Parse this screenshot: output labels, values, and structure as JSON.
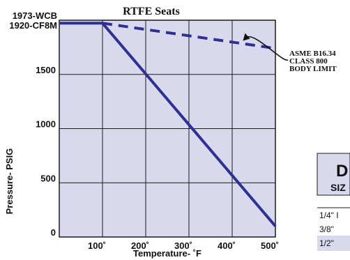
{
  "chart_data": {
    "type": "line",
    "title": "RTFE Seats",
    "xlabel": "Temperature- ˚F",
    "ylabel": "Pressure- PSIG",
    "xlim": [
      0,
      500
    ],
    "ylim": [
      0,
      2000
    ],
    "x_ticks": [
      {
        "value": 100,
        "label": "100˚"
      },
      {
        "value": 200,
        "label": "200˚"
      },
      {
        "value": 300,
        "label": "300˚"
      },
      {
        "value": 400,
        "label": "400˚"
      },
      {
        "value": 500,
        "label": "500˚"
      }
    ],
    "y_ticks": [
      {
        "value": 0,
        "label": "0"
      },
      {
        "value": 500,
        "label": "500"
      },
      {
        "value": 1000,
        "label": "1000"
      },
      {
        "value": 1500,
        "label": "1500"
      }
    ],
    "y_special_label": {
      "value": 1973,
      "lines": [
        "1973-WCB",
        "1920-CF8M"
      ]
    },
    "grid": true,
    "series": [
      {
        "style": "solid",
        "color": "#2e3192",
        "x": [
          0,
          100,
          500
        ],
        "y": [
          1973,
          1973,
          100
        ]
      },
      {
        "style": "dashed",
        "color": "#2e3192",
        "x": [
          100,
          500
        ],
        "y": [
          1973,
          1740
        ]
      }
    ],
    "annotation": {
      "lines": [
        "ASME B16.34",
        "CLASS 800",
        "BODY LIMIT"
      ],
      "arrow_to": {
        "x": 425,
        "y": 1810
      }
    }
  },
  "table_fragment": {
    "header_letter": "D",
    "subheader": "SIZ",
    "rows": [
      "1/4\" I",
      "3/8\"",
      "1/2\""
    ]
  },
  "colors": {
    "plot_bg": "#d9d9ee",
    "line": "#2e3192",
    "grid": "#1a1a1a",
    "table_highlight": "#d9d9ee"
  }
}
